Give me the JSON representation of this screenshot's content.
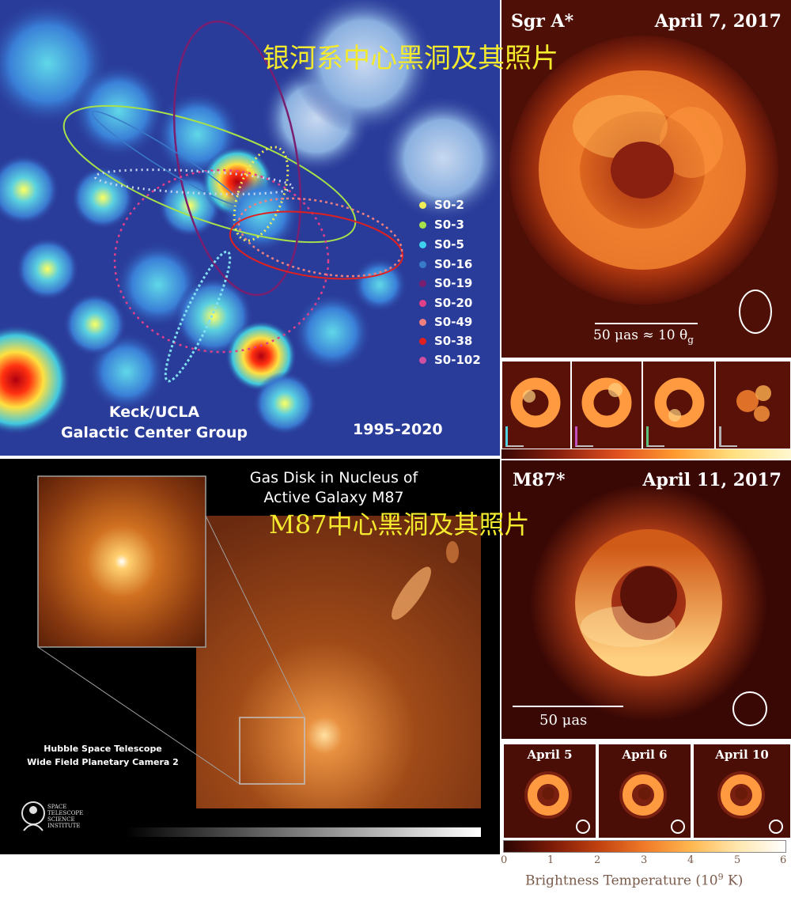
{
  "overlay_titles": {
    "top": "银河系中心黑洞及其照片",
    "bottom": "M87中心黑洞及其照片"
  },
  "galactic_center": {
    "credit_line1": "Keck/UCLA",
    "credit_line2": "Galactic Center Group",
    "years": "1995-2020",
    "stars": [
      {
        "name": "S0-2",
        "color": "#f0ef5a"
      },
      {
        "name": "S0-3",
        "color": "#a8e04a"
      },
      {
        "name": "S0-5",
        "color": "#3fd0f0"
      },
      {
        "name": "S0-16",
        "color": "#3a7bc8"
      },
      {
        "name": "S0-19",
        "color": "#7a1e70"
      },
      {
        "name": "S0-20",
        "color": "#e0408a"
      },
      {
        "name": "S0-49",
        "color": "#f08080"
      },
      {
        "name": "S0-38",
        "color": "#e02020"
      },
      {
        "name": "S0-102",
        "color": "#d050a0"
      }
    ]
  },
  "sgr_a": {
    "title": "Sgr A*",
    "date": "April 7, 2017",
    "scale": "50 μas ≈ 10 θ",
    "scale_sub": "g"
  },
  "m87_hubble": {
    "title_line1": "Gas Disk in Nucleus of",
    "title_line2": "Active Galaxy M87",
    "camera_line1": "Hubble Space Telescope",
    "camera_line2": "Wide Field Planetary Camera 2",
    "institute_lines": [
      "SPACE",
      "TELESCOPE",
      "SCIENCE",
      "INSTITUTE"
    ]
  },
  "m87_eht": {
    "title": "M87*",
    "date": "April 11, 2017",
    "scale": "50 μas",
    "thumbnails": [
      "April 5",
      "April 6",
      "April 10"
    ]
  },
  "colorbar": {
    "ticks": [
      "0",
      "1",
      "2",
      "3",
      "4",
      "5",
      "6"
    ],
    "label": "Brightness Temperature (10",
    "label_exp": "9",
    "label_unit": " K)"
  },
  "colors": {
    "overlay_text": "#f3ea2e",
    "ring_orange": "#f07a28",
    "ring_yellow": "#ffd27a",
    "map_background": "#2a3c9a"
  }
}
